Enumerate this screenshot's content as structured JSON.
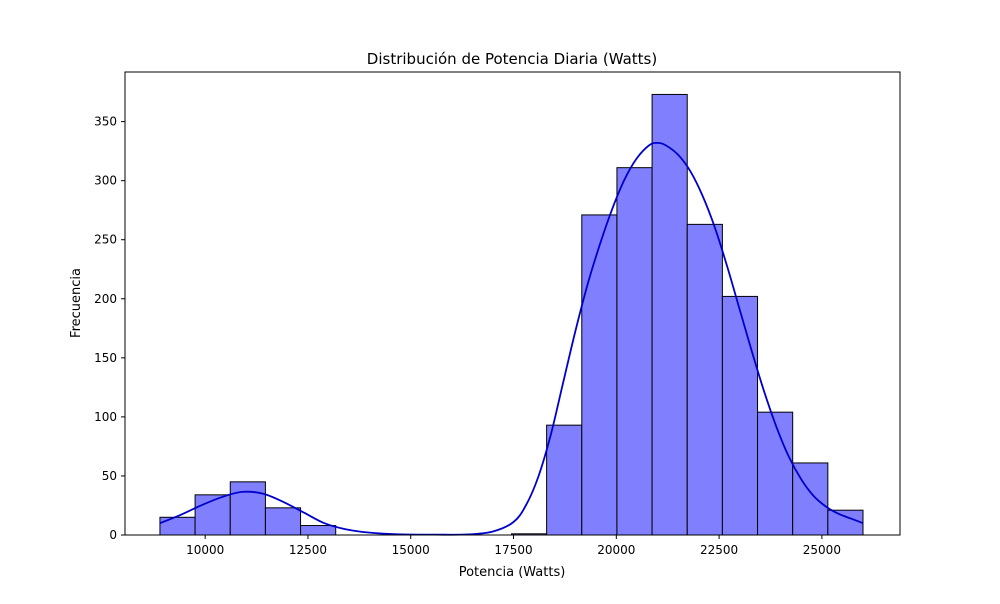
{
  "chart_data": {
    "type": "bar",
    "title": "Distribución de Potencia Diaria (Watts)",
    "xlabel": "Potencia (Watts)",
    "ylabel": "Frecuencia",
    "xlim": [
      8050,
      26900
    ],
    "ylim": [
      0,
      392
    ],
    "xticks": [
      10000,
      12500,
      15000,
      17500,
      20000,
      22500,
      25000
    ],
    "yticks": [
      0,
      50,
      100,
      150,
      200,
      250,
      300,
      350
    ],
    "bin_edges": [
      8900,
      9755,
      10610,
      11465,
      12320,
      13175,
      14030,
      14885,
      15740,
      16595,
      17450,
      18305,
      19160,
      20015,
      20870,
      21725,
      22580,
      23435,
      24290,
      25145,
      26000
    ],
    "values": [
      15,
      34,
      45,
      23,
      8,
      0,
      0,
      0,
      0,
      0,
      1,
      93,
      271,
      311,
      373,
      263,
      202,
      104,
      61,
      21
    ],
    "kde": {
      "x": [
        8900,
        9400,
        9900,
        10400,
        10900,
        11400,
        11900,
        12400,
        12900,
        13400,
        14000,
        14800,
        15600,
        16400,
        17000,
        17500,
        17800,
        18100,
        18400,
        18700,
        19000,
        19300,
        19600,
        19900,
        20200,
        20500,
        20800,
        21000,
        21200,
        21500,
        21800,
        22100,
        22400,
        22700,
        23000,
        23300,
        23600,
        23900,
        24200,
        24500,
        24800,
        25100,
        25400,
        25700,
        26000
      ],
      "y": [
        10,
        17,
        25,
        32,
        36.5,
        35,
        28,
        19,
        10,
        5,
        2,
        0.5,
        0.3,
        0.5,
        3,
        11,
        25,
        49,
        84,
        128,
        172,
        212,
        246,
        276,
        301,
        319,
        330,
        332,
        330,
        322,
        308,
        287,
        260,
        227,
        191,
        155,
        121,
        91,
        66,
        47,
        33,
        24,
        18,
        14,
        10
      ]
    },
    "colors": {
      "bar_fill": "#8080ff",
      "bar_edge": "#000000",
      "kde_line": "#0000cc"
    },
    "grid": false,
    "legend": "none"
  }
}
